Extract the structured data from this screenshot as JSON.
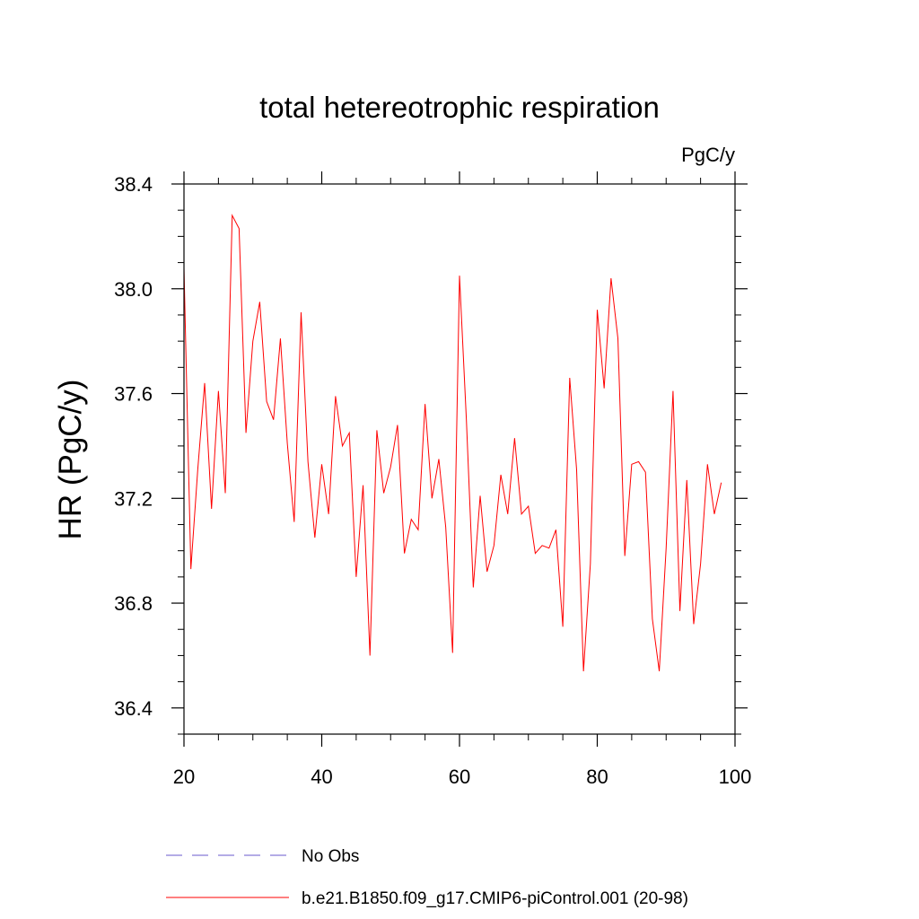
{
  "chart_data": {
    "type": "line",
    "title": "total hetereotrophic respiration",
    "units_label": "PgC/y",
    "ylabel": "HR  (PgC/y)",
    "xlabel": "",
    "xlim": [
      20,
      100
    ],
    "ylim": [
      36.3,
      38.4
    ],
    "x_ticks": [
      20,
      40,
      60,
      80,
      100
    ],
    "x_tick_labels": [
      "20",
      "40",
      "60",
      "80",
      "100"
    ],
    "y_ticks": [
      36.4,
      36.8,
      37.2,
      37.6,
      38.0,
      38.4
    ],
    "y_tick_labels": [
      "36.4",
      "36.8",
      "37.2",
      "37.6",
      "38.0",
      "38.4"
    ],
    "series": [
      {
        "name": "b.e21.B1850.f09_g17.CMIP6-piControl.001 (20-98)",
        "color": "#ff0000",
        "x": [
          20,
          21,
          22,
          23,
          24,
          25,
          26,
          27,
          28,
          29,
          30,
          31,
          32,
          33,
          34,
          35,
          36,
          37,
          38,
          39,
          40,
          41,
          42,
          43,
          44,
          45,
          46,
          47,
          48,
          49,
          50,
          51,
          52,
          53,
          54,
          55,
          56,
          57,
          58,
          59,
          60,
          61,
          62,
          63,
          64,
          65,
          66,
          67,
          68,
          69,
          70,
          71,
          72,
          73,
          74,
          75,
          76,
          77,
          78,
          79,
          80,
          81,
          82,
          83,
          84,
          85,
          86,
          87,
          88,
          89,
          90,
          91,
          92,
          93,
          94,
          95,
          96,
          97,
          98
        ],
        "values": [
          38.08,
          36.93,
          37.31,
          37.64,
          37.16,
          37.61,
          37.22,
          38.28,
          38.23,
          37.45,
          37.8,
          37.95,
          37.57,
          37.5,
          37.81,
          37.41,
          37.11,
          37.91,
          37.34,
          37.05,
          37.33,
          37.14,
          37.59,
          37.4,
          37.45,
          36.9,
          37.25,
          36.6,
          37.46,
          37.22,
          37.32,
          37.48,
          36.99,
          37.12,
          37.08,
          37.56,
          37.2,
          37.35,
          37.09,
          36.61,
          38.05,
          37.5,
          36.86,
          37.21,
          36.92,
          37.02,
          37.29,
          37.14,
          37.43,
          37.14,
          37.17,
          36.99,
          37.02,
          37.01,
          37.08,
          36.71,
          37.66,
          37.31,
          36.54,
          36.95,
          37.92,
          37.62,
          38.04,
          37.81,
          36.98,
          37.33,
          37.34,
          37.3,
          36.74,
          36.54,
          37.01,
          37.61,
          36.77,
          37.27,
          36.72,
          36.95,
          37.33,
          37.14,
          37.26
        ]
      }
    ],
    "legend": [
      {
        "label": "No Obs",
        "color": "#6a5acd",
        "style": "dashed"
      },
      {
        "label": "b.e21.B1850.f09_g17.CMIP6-piControl.001 (20-98)",
        "color": "#ff0000",
        "style": "solid"
      }
    ]
  }
}
